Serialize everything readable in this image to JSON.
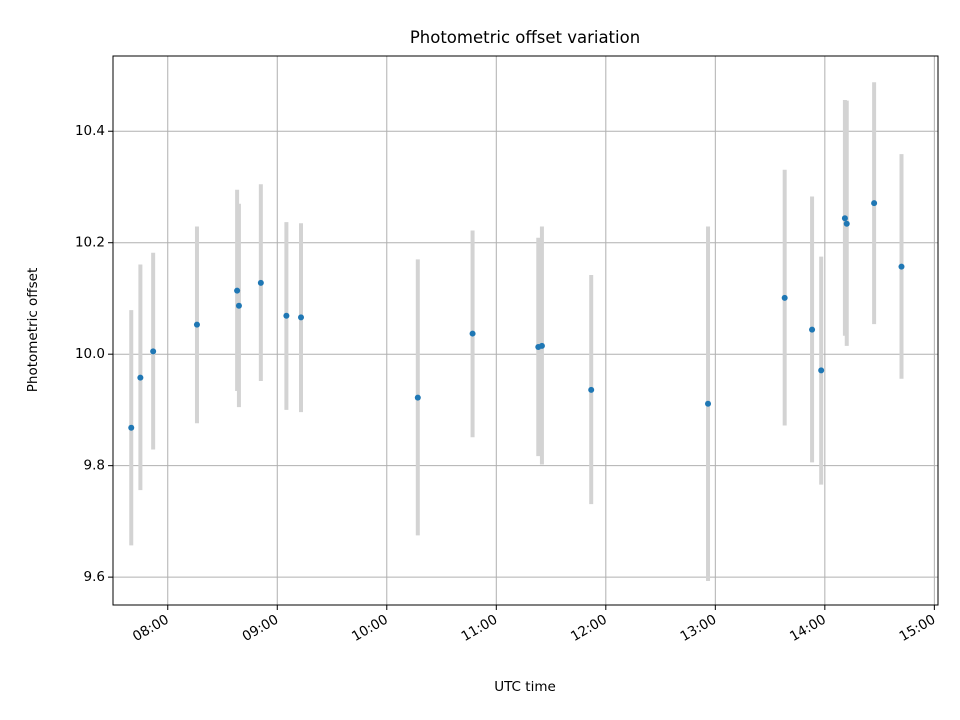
{
  "chart_data": {
    "type": "scatter",
    "title": "Photometric offset variation",
    "xlabel": "UTC time",
    "ylabel": "Photometric offset",
    "x_ticks": [
      "08:00",
      "09:00",
      "10:00",
      "11:00",
      "12:00",
      "13:00",
      "14:00",
      "15:00"
    ],
    "y_ticks": [
      "9.6",
      "9.8",
      "10.0",
      "10.2",
      "10.4"
    ],
    "xlim": [
      "07:30",
      "15:02"
    ],
    "ylim": [
      9.55,
      10.535
    ],
    "grid": true,
    "point_color": "#1f77b4",
    "errorbar_color": "#d3d3d3",
    "points": [
      {
        "x": "07:40",
        "y": 9.868,
        "ylow": 9.657,
        "yhigh": 10.079
      },
      {
        "x": "07:45",
        "y": 9.958,
        "ylow": 9.756,
        "yhigh": 10.161
      },
      {
        "x": "07:52",
        "y": 10.005,
        "ylow": 9.829,
        "yhigh": 10.182
      },
      {
        "x": "08:16",
        "y": 10.053,
        "ylow": 9.876,
        "yhigh": 10.229
      },
      {
        "x": "08:38",
        "y": 10.114,
        "ylow": 9.934,
        "yhigh": 10.295
      },
      {
        "x": "08:39",
        "y": 10.087,
        "ylow": 9.905,
        "yhigh": 10.27
      },
      {
        "x": "08:51",
        "y": 10.128,
        "ylow": 9.952,
        "yhigh": 10.305
      },
      {
        "x": "09:05",
        "y": 10.069,
        "ylow": 9.9,
        "yhigh": 10.237
      },
      {
        "x": "09:13",
        "y": 10.066,
        "ylow": 9.896,
        "yhigh": 10.235
      },
      {
        "x": "10:17",
        "y": 9.922,
        "ylow": 9.675,
        "yhigh": 10.17
      },
      {
        "x": "10:47",
        "y": 10.037,
        "ylow": 9.851,
        "yhigh": 10.222
      },
      {
        "x": "11:23",
        "y": 10.013,
        "ylow": 9.817,
        "yhigh": 10.209
      },
      {
        "x": "11:25",
        "y": 10.015,
        "ylow": 9.802,
        "yhigh": 10.229
      },
      {
        "x": "11:52",
        "y": 9.936,
        "ylow": 9.731,
        "yhigh": 10.142
      },
      {
        "x": "12:56",
        "y": 9.911,
        "ylow": 9.593,
        "yhigh": 10.229
      },
      {
        "x": "13:38",
        "y": 10.101,
        "ylow": 9.872,
        "yhigh": 10.331
      },
      {
        "x": "13:53",
        "y": 10.044,
        "ylow": 9.806,
        "yhigh": 10.283
      },
      {
        "x": "13:58",
        "y": 9.971,
        "ylow": 9.766,
        "yhigh": 10.175
      },
      {
        "x": "14:11",
        "y": 10.244,
        "ylow": 10.033,
        "yhigh": 10.456
      },
      {
        "x": "14:12",
        "y": 10.234,
        "ylow": 10.015,
        "yhigh": 10.455
      },
      {
        "x": "14:27",
        "y": 10.271,
        "ylow": 10.054,
        "yhigh": 10.488
      },
      {
        "x": "14:42",
        "y": 10.157,
        "ylow": 9.956,
        "yhigh": 10.359
      }
    ]
  }
}
